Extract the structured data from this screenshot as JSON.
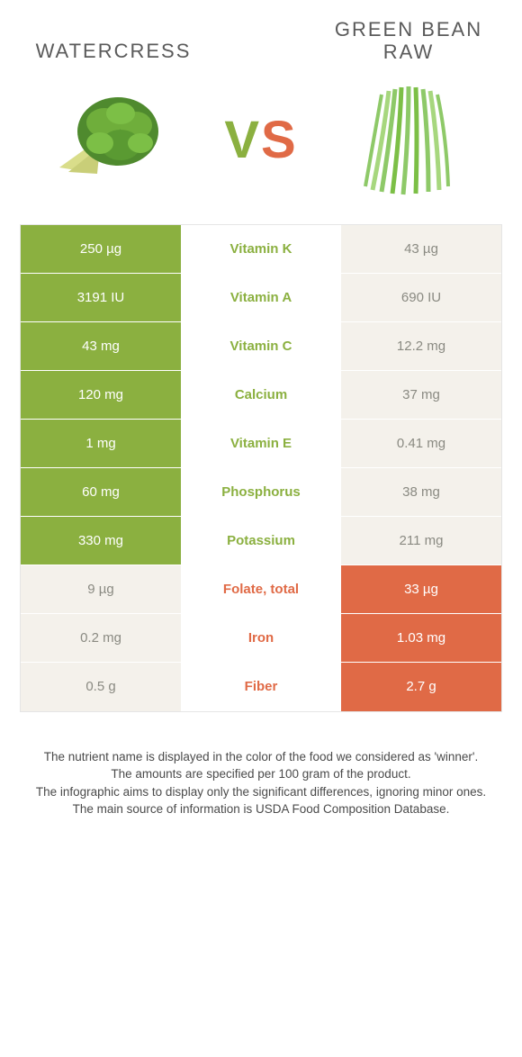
{
  "colors": {
    "left": "#8bb040",
    "right": "#e06a46",
    "pale_bg": "#f4f1eb",
    "pale_text": "#8a8a82",
    "body_text": "#4a4a4a",
    "title_text": "#5a5a5a",
    "border": "#e5e5e5"
  },
  "header": {
    "left_title": "Watercress",
    "right_title": "Green bean raw",
    "vs_v": "V",
    "vs_s": "S"
  },
  "rows": [
    {
      "label": "Vitamin K",
      "left": "250 µg",
      "right": "43 µg",
      "winner": "left"
    },
    {
      "label": "Vitamin A",
      "left": "3191 IU",
      "right": "690 IU",
      "winner": "left"
    },
    {
      "label": "Vitamin C",
      "left": "43 mg",
      "right": "12.2 mg",
      "winner": "left"
    },
    {
      "label": "Calcium",
      "left": "120 mg",
      "right": "37 mg",
      "winner": "left"
    },
    {
      "label": "Vitamin E",
      "left": "1 mg",
      "right": "0.41 mg",
      "winner": "left"
    },
    {
      "label": "Phosphorus",
      "left": "60 mg",
      "right": "38 mg",
      "winner": "left"
    },
    {
      "label": "Potassium",
      "left": "330 mg",
      "right": "211 mg",
      "winner": "left"
    },
    {
      "label": "Folate, total",
      "left": "9 µg",
      "right": "33 µg",
      "winner": "right"
    },
    {
      "label": "Iron",
      "left": "0.2 mg",
      "right": "1.03 mg",
      "winner": "right"
    },
    {
      "label": "Fiber",
      "left": "0.5 g",
      "right": "2.7 g",
      "winner": "right"
    }
  ],
  "footnotes": {
    "l1": "The nutrient name is displayed in the color of the food we considered as 'winner'.",
    "l2": "The amounts are specified per 100 gram of the product.",
    "l3": "The infographic aims to display only the significant differences, ignoring minor ones.",
    "l4": "The main source of information is USDA Food Composition Database."
  }
}
